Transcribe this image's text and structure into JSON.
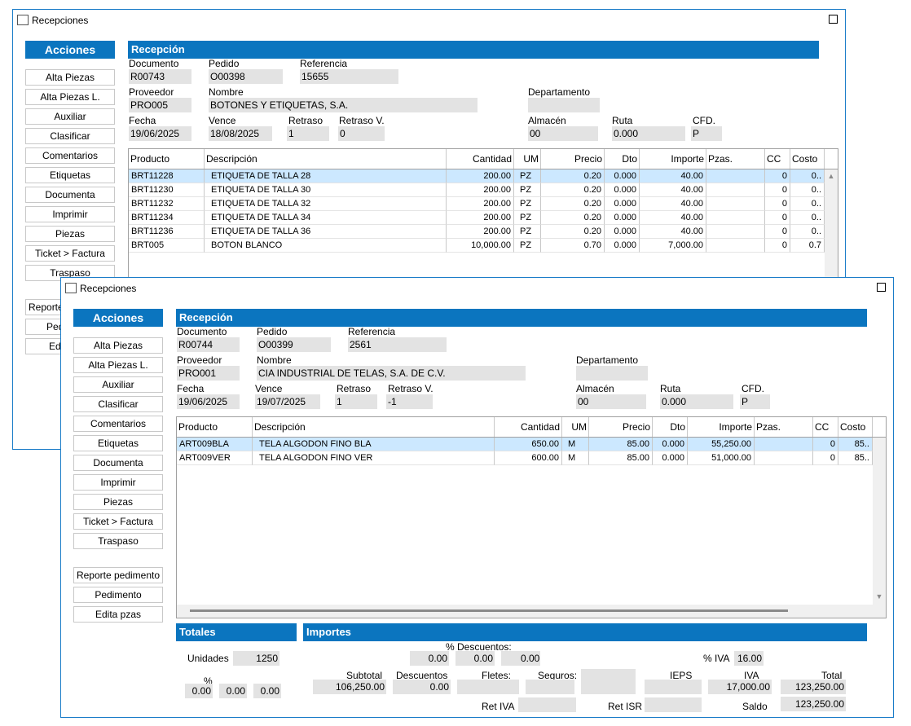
{
  "windows": [
    {
      "title": "Recepciones",
      "actions_title": "Acciones",
      "buttons": [
        "Alta Piezas",
        "Alta Piezas L.",
        "Auxiliar",
        "Clasificar",
        "Comentarios",
        "Etiquetas",
        "Documenta",
        "Imprimir",
        "Piezas",
        "Ticket > Factura",
        "Traspaso"
      ],
      "buttons2": [
        "Reporte pedimento",
        "Pedimento",
        "Edita pzas"
      ],
      "section_title": "Recepción",
      "labels": {
        "documento": "Documento",
        "pedido": "Pedido",
        "referencia": "Referencia",
        "proveedor": "Proveedor",
        "nombre": "Nombre",
        "departamento": "Departamento",
        "fecha": "Fecha",
        "vence": "Vence",
        "retraso": "Retraso",
        "retraso_v": "Retraso V.",
        "almacen": "Almacén",
        "ruta": "Ruta",
        "cfd": "CFD."
      },
      "values": {
        "documento": "R00743",
        "pedido": "O00398",
        "referencia": "15655",
        "proveedor": "PRO005",
        "nombre": "BOTONES Y ETIQUETAS, S.A.",
        "departamento": "",
        "fecha": "19/06/2025",
        "vence": "18/08/2025",
        "retraso": "1",
        "retraso_v": "0",
        "almacen": "00",
        "ruta": "0.000",
        "cfd": "P"
      },
      "columns": [
        "Producto",
        "Descripción",
        "Cantidad",
        "UM",
        "Precio",
        "Dto",
        "Importe",
        "Pzas.",
        "CC",
        "Costo"
      ],
      "rows": [
        [
          "BRT11228",
          "ETIQUETA DE TALLA 28",
          "200.00",
          "PZ",
          "0.20",
          "0.000",
          "40.00",
          "",
          "0",
          "0.."
        ],
        [
          "BRT11230",
          "ETIQUETA DE TALLA 30",
          "200.00",
          "PZ",
          "0.20",
          "0.000",
          "40.00",
          "",
          "0",
          "0.."
        ],
        [
          "BRT11232",
          "ETIQUETA DE TALLA 32",
          "200.00",
          "PZ",
          "0.20",
          "0.000",
          "40.00",
          "",
          "0",
          "0.."
        ],
        [
          "BRT11234",
          "ETIQUETA DE TALLA 34",
          "200.00",
          "PZ",
          "0.20",
          "0.000",
          "40.00",
          "",
          "0",
          "0.."
        ],
        [
          "BRT11236",
          "ETIQUETA DE TALLA 36",
          "200.00",
          "PZ",
          "0.20",
          "0.000",
          "40.00",
          "",
          "0",
          "0.."
        ],
        [
          "BRT005",
          "BOTON BLANCO",
          "10,000.00",
          "PZ",
          "0.70",
          "0.000",
          "7,000.00",
          "",
          "0",
          "0.7"
        ]
      ]
    },
    {
      "title": "Recepciones",
      "actions_title": "Acciones",
      "buttons": [
        "Alta Piezas",
        "Alta Piezas L.",
        "Auxiliar",
        "Clasificar",
        "Comentarios",
        "Etiquetas",
        "Documenta",
        "Imprimir",
        "Piezas",
        "Ticket > Factura",
        "Traspaso"
      ],
      "buttons2": [
        "Reporte pedimento",
        "Pedimento",
        "Edita pzas"
      ],
      "section_title": "Recepción",
      "labels": {
        "documento": "Documento",
        "pedido": "Pedido",
        "referencia": "Referencia",
        "proveedor": "Proveedor",
        "nombre": "Nombre",
        "departamento": "Departamento",
        "fecha": "Fecha",
        "vence": "Vence",
        "retraso": "Retraso",
        "retraso_v": "Retraso V.",
        "almacen": "Almacén",
        "ruta": "Ruta",
        "cfd": "CFD."
      },
      "values": {
        "documento": "R00744",
        "pedido": "O00399",
        "referencia": "2561",
        "proveedor": "PRO001",
        "nombre": "CIA INDUSTRIAL DE TELAS, S.A. DE C.V.",
        "departamento": "",
        "fecha": "19/06/2025",
        "vence": "19/07/2025",
        "retraso": "1",
        "retraso_v": "-1",
        "almacen": "00",
        "ruta": "0.000",
        "cfd": "P"
      },
      "columns": [
        "Producto",
        "Descripción",
        "Cantidad",
        "UM",
        "Precio",
        "Dto",
        "Importe",
        "Pzas.",
        "CC",
        "Costo"
      ],
      "rows": [
        [
          "ART009BLA",
          "TELA ALGODON FINO BLA",
          "650.00",
          "M",
          "85.00",
          "0.000",
          "55,250.00",
          "",
          "0",
          "85.."
        ],
        [
          "ART009VER",
          "TELA ALGODON FINO VER",
          "600.00",
          "M",
          "85.00",
          "0.000",
          "51,000.00",
          "",
          "0",
          "85.."
        ]
      ],
      "totales": {
        "title": "Totales",
        "unidades_label": "Unidades",
        "unidades": "1250",
        "pct_label": "%",
        "pcts": [
          "0.00",
          "0.00",
          "0.00"
        ]
      },
      "importes": {
        "title": "Importes",
        "pct_desc_label": "% Descuentos:",
        "pct_desc": [
          "0.00",
          "0.00",
          "0.00"
        ],
        "pct_iva_label": "% IVA",
        "pct_iva": "16.00",
        "subtotal_label": "Subtotal",
        "subtotal": "106,250.00",
        "descuentos_label": "Descuentos",
        "descuentos": "0.00",
        "fletes_label": "Fletes:",
        "fletes": "",
        "seguros_label": "Seguros:",
        "seguros": "",
        "ieps_label": "IEPS",
        "ieps": "",
        "iva_label": "IVA",
        "iva": "17,000.00",
        "total_label": "Total",
        "total": "123,250.00",
        "ret_iva_label": "Ret IVA",
        "ret_iva": "",
        "ret_isr_label": "Ret ISR",
        "ret_isr": "",
        "saldo_label": "Saldo",
        "saldo": "123,250.00"
      }
    }
  ]
}
